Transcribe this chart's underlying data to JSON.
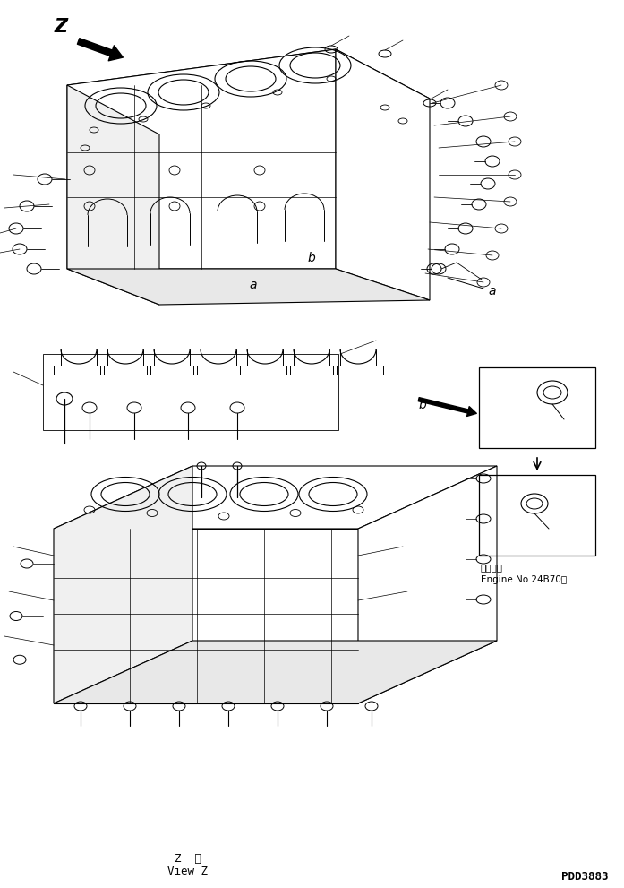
{
  "bg_color": "#ffffff",
  "line_color": "#000000",
  "fig_width": 6.97,
  "fig_height": 9.91,
  "dpi": 100,
  "bottom_label1": "Z  視",
  "bottom_label2": "View Z",
  "corner_code": "PDD3883",
  "label_a": "a",
  "label_b": "b",
  "box_label_line1": "適用号機",
  "box_label_line2": "Engine No.24B70～",
  "arrow_z_label": "Z"
}
